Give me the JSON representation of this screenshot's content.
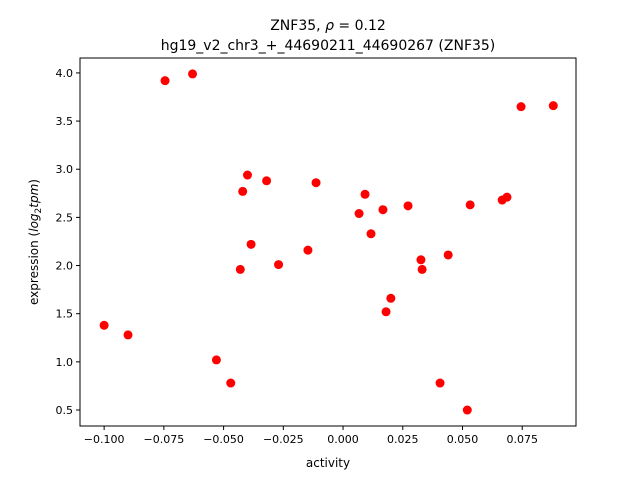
{
  "chart_data": {
    "type": "scatter",
    "title_line1_prefix": "ZNF35, ",
    "title_rho": "ρ",
    "title_line1_suffix": " = 0.12",
    "title_line2": "hg19_v2_chr3_+_44690211_44690267 (ZNF35)",
    "xlabel": "activity",
    "ylabel_parts": {
      "prefix": "expression (",
      "log": "log",
      "sub": "2",
      "tpm": "tpm",
      "suffix": ")"
    },
    "xlim": [
      -0.1101,
      0.0975
    ],
    "ylim": [
      0.334,
      4.155
    ],
    "xticks": [
      -0.1,
      -0.075,
      -0.05,
      -0.025,
      0.0,
      0.025,
      0.05,
      0.075
    ],
    "xtick_labels": [
      "−0.100",
      "−0.075",
      "−0.050",
      "−0.025",
      "0.000",
      "0.025",
      "0.050",
      "0.075"
    ],
    "yticks": [
      0.5,
      1.0,
      1.5,
      2.0,
      2.5,
      3.0,
      3.5,
      4.0
    ],
    "ytick_labels": [
      "0.5",
      "1.0",
      "1.5",
      "2.0",
      "2.5",
      "3.0",
      "3.5",
      "4.0"
    ],
    "grid": false,
    "marker_color": "#ff0000",
    "x": [
      -0.1,
      -0.09,
      -0.0745,
      -0.063,
      -0.053,
      -0.047,
      -0.043,
      -0.042,
      -0.04,
      -0.0385,
      -0.032,
      -0.027,
      -0.0147,
      -0.0113,
      0.0067,
      0.0092,
      0.0117,
      0.0167,
      0.018,
      0.02,
      0.0272,
      0.0326,
      0.0331,
      0.0406,
      0.044,
      0.052,
      0.0532,
      0.0666,
      0.0686,
      0.0745,
      0.088
    ],
    "y": [
      1.38,
      1.28,
      3.92,
      3.99,
      1.02,
      0.78,
      1.96,
      2.77,
      2.94,
      2.22,
      2.88,
      2.01,
      2.16,
      2.86,
      2.54,
      2.74,
      2.33,
      2.58,
      1.52,
      1.66,
      2.62,
      2.06,
      1.96,
      0.78,
      2.11,
      0.5,
      2.63,
      2.68,
      2.71,
      3.65,
      3.66
    ]
  }
}
